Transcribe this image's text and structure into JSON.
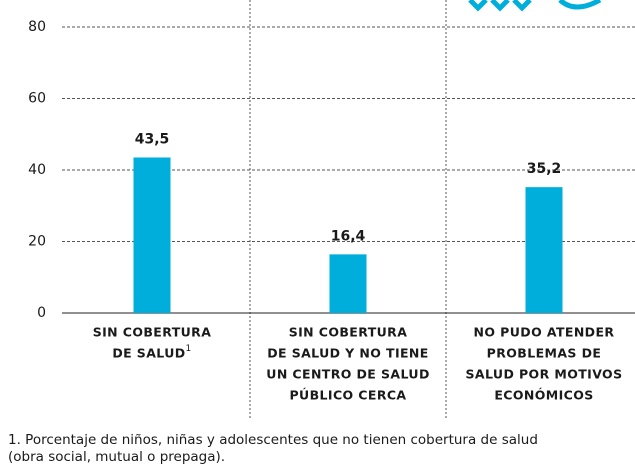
{
  "chart_data": {
    "type": "bar",
    "categories": [
      [
        "SIN COBERTURA",
        "DE SALUD"
      ],
      [
        "SIN COBERTURA",
        "DE SALUD Y NO TIENE",
        "UN CENTRO DE SALUD",
        "PÚBLICO CERCA"
      ],
      [
        "NO PUDO ATENDER",
        "PROBLEMAS DE",
        "SALUD POR MOTIVOS",
        "ECONÓMICOS"
      ]
    ],
    "category_refs": [
      "1",
      null,
      null
    ],
    "values": [
      43.5,
      16.4,
      35.2
    ],
    "value_labels": [
      "43,5",
      "16,4",
      "35,2"
    ],
    "color": "#00aedb",
    "ylim": [
      0,
      80
    ],
    "yticks": [
      0,
      20,
      40,
      60,
      80
    ],
    "grid": true,
    "footnote": [
      "1. Porcentaje de niños, niñas y adolescentes que no tienen cobertura de salud",
      "(obra social, mutual o prepaga)."
    ]
  }
}
